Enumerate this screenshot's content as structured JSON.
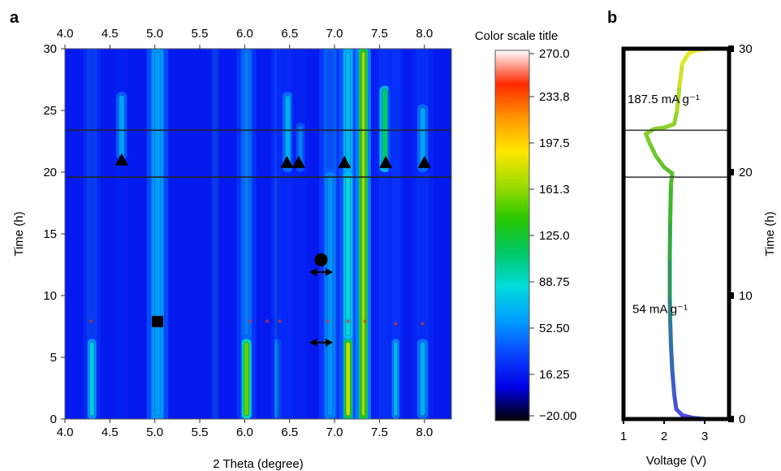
{
  "chart_data": [
    {
      "type": "heatmap",
      "panel_label": "a",
      "xlabel": "2 Theta (degree)",
      "ylabel": "Time (h)",
      "xlim": [
        4.0,
        8.3
      ],
      "ylim": [
        0,
        30
      ],
      "x_ticks": [
        "4.0",
        "4.5",
        "5.0",
        "5.5",
        "6.0",
        "6.5",
        "7.0",
        "7.5",
        "8.0"
      ],
      "y_ticks": [
        "0",
        "5",
        "10",
        "15",
        "20",
        "25",
        "30"
      ],
      "colorbar": {
        "title": "Color scale title",
        "ticks": [
          "270.0",
          "233.8",
          "197.5",
          "161.3",
          "125.0",
          "88.75",
          "52.50",
          "16.25",
          "−20.00"
        ],
        "range": [
          -20,
          270
        ],
        "colors": [
          "#000000",
          "#0000e6",
          "#0a46ff",
          "#00a0ff",
          "#00dcdc",
          "#00c864",
          "#28c800",
          "#a0dc00",
          "#ffe600",
          "#ff9600",
          "#ff2800",
          "#ffffff"
        ]
      },
      "background_value": 16,
      "peaks": [
        {
          "x": 4.3,
          "w": 0.04,
          "base": 30,
          "segments": [
            [
              0,
              6.5,
              80
            ],
            [
              6.5,
              30,
              28
            ]
          ]
        },
        {
          "x": 4.63,
          "w": 0.05,
          "base": 18,
          "segments": [
            [
              21,
              26.5,
              60
            ]
          ]
        },
        {
          "x": 5.03,
          "w": 0.05,
          "base": 55,
          "segments": [
            [
              0,
              30,
              58
            ]
          ]
        },
        {
          "x": 5.67,
          "w": 0.02,
          "base": 28,
          "segments": [
            [
              0,
              30,
              28
            ]
          ]
        },
        {
          "x": 6.02,
          "w": 0.045,
          "base": 38,
          "segments": [
            [
              0,
              6.5,
              150
            ],
            [
              6.5,
              30,
              48
            ]
          ]
        },
        {
          "x": 6.37,
          "w": 0.03,
          "base": 30,
          "segments": [
            [
              0,
              6.5,
              75
            ],
            [
              6.5,
              20,
              30
            ]
          ]
        },
        {
          "x": 6.48,
          "w": 0.05,
          "base": 22,
          "segments": [
            [
              20,
              26.5,
              65
            ]
          ]
        },
        {
          "x": 6.62,
          "w": 0.04,
          "base": 20,
          "segments": [
            [
              20,
              24,
              50
            ]
          ]
        },
        {
          "x": 6.95,
          "w": 0.05,
          "base": 42,
          "segments": [
            [
              0,
              20,
              55
            ],
            [
              20,
              30,
              35
            ]
          ]
        },
        {
          "x": 7.15,
          "w": 0.04,
          "base": 60,
          "segments": [
            [
              0,
              6.5,
              175
            ],
            [
              6.5,
              20,
              85
            ],
            [
              20,
              30,
              70
            ]
          ]
        },
        {
          "x": 7.32,
          "w": 0.035,
          "base": 95,
          "segments": [
            [
              0,
              30,
              165
            ]
          ]
        },
        {
          "x": 7.56,
          "w": 0.05,
          "base": 25,
          "segments": [
            [
              20,
              27,
              110
            ]
          ]
        },
        {
          "x": 7.68,
          "w": 0.035,
          "base": 26,
          "segments": [
            [
              0,
              6.5,
              70
            ]
          ]
        },
        {
          "x": 7.98,
          "w": 0.05,
          "base": 24,
          "segments": [
            [
              0,
              6.5,
              65
            ],
            [
              20,
              25.5,
              60
            ]
          ]
        }
      ],
      "horizontal_lines_y": [
        19.6,
        23.4
      ],
      "markers": {
        "triangles": [
          {
            "x": 4.63,
            "y": 21
          },
          {
            "x": 6.47,
            "y": 20.8
          },
          {
            "x": 6.6,
            "y": 20.8
          },
          {
            "x": 7.11,
            "y": 20.8
          },
          {
            "x": 7.57,
            "y": 20.8
          },
          {
            "x": 8.0,
            "y": 20.8
          }
        ],
        "stars": [
          {
            "x": 4.29,
            "y": 7.8
          },
          {
            "x": 6.06,
            "y": 7.8
          },
          {
            "x": 6.25,
            "y": 7.8
          },
          {
            "x": 6.39,
            "y": 7.8
          },
          {
            "x": 6.92,
            "y": 7.8
          },
          {
            "x": 7.15,
            "y": 7.8
          },
          {
            "x": 7.34,
            "y": 7.8
          },
          {
            "x": 7.68,
            "y": 7.6
          },
          {
            "x": 7.98,
            "y": 7.6
          }
        ],
        "squares": [
          {
            "x": 5.03,
            "y": 7.9
          }
        ],
        "circles": [
          {
            "x": 6.85,
            "y": 12.9
          }
        ],
        "double_arrows": [
          {
            "x1": 6.72,
            "x2": 6.98,
            "y": 11.9
          },
          {
            "x1": 6.72,
            "x2": 6.98,
            "y": 6.2
          }
        ]
      },
      "star_color": "#e0302a"
    },
    {
      "type": "line",
      "panel_label": "b",
      "xlabel": "Voltage (V)",
      "ylabel": "Time (h)",
      "xlim": [
        1,
        3.6
      ],
      "ylim": [
        0,
        30
      ],
      "x_ticks": [
        "1",
        "2",
        "3"
      ],
      "y_ticks": [
        "0",
        "10",
        "20",
        "30"
      ],
      "horizontal_lines_y": [
        19.6,
        23.4
      ],
      "annotations": [
        {
          "text": "187.5 mA g⁻¹",
          "x": 1.1,
          "y": 25.6
        },
        {
          "text": "54 mA g⁻¹",
          "x": 1.22,
          "y": 8.6
        }
      ],
      "series": [
        {
          "values": [
            [
              3.0,
              0.0
            ],
            [
              2.7,
              0.1
            ],
            [
              2.45,
              0.3
            ],
            [
              2.3,
              0.8
            ],
            [
              2.25,
              2
            ],
            [
              2.2,
              4
            ],
            [
              2.17,
              6
            ],
            [
              2.15,
              8
            ],
            [
              2.14,
              10
            ],
            [
              2.14,
              13
            ],
            [
              2.15,
              16
            ],
            [
              2.17,
              19
            ],
            [
              2.2,
              19.9
            ],
            [
              2.0,
              20.4
            ],
            [
              1.8,
              21.3
            ],
            [
              1.65,
              22.3
            ],
            [
              1.55,
              23.1
            ],
            [
              1.75,
              23.5
            ],
            [
              2.0,
              23.6
            ],
            [
              2.25,
              23.9
            ],
            [
              2.32,
              25
            ],
            [
              2.38,
              27
            ],
            [
              2.45,
              28.8
            ],
            [
              2.6,
              29.6
            ],
            [
              2.8,
              29.9
            ],
            [
              3.1,
              30.0
            ]
          ]
        }
      ]
    }
  ]
}
